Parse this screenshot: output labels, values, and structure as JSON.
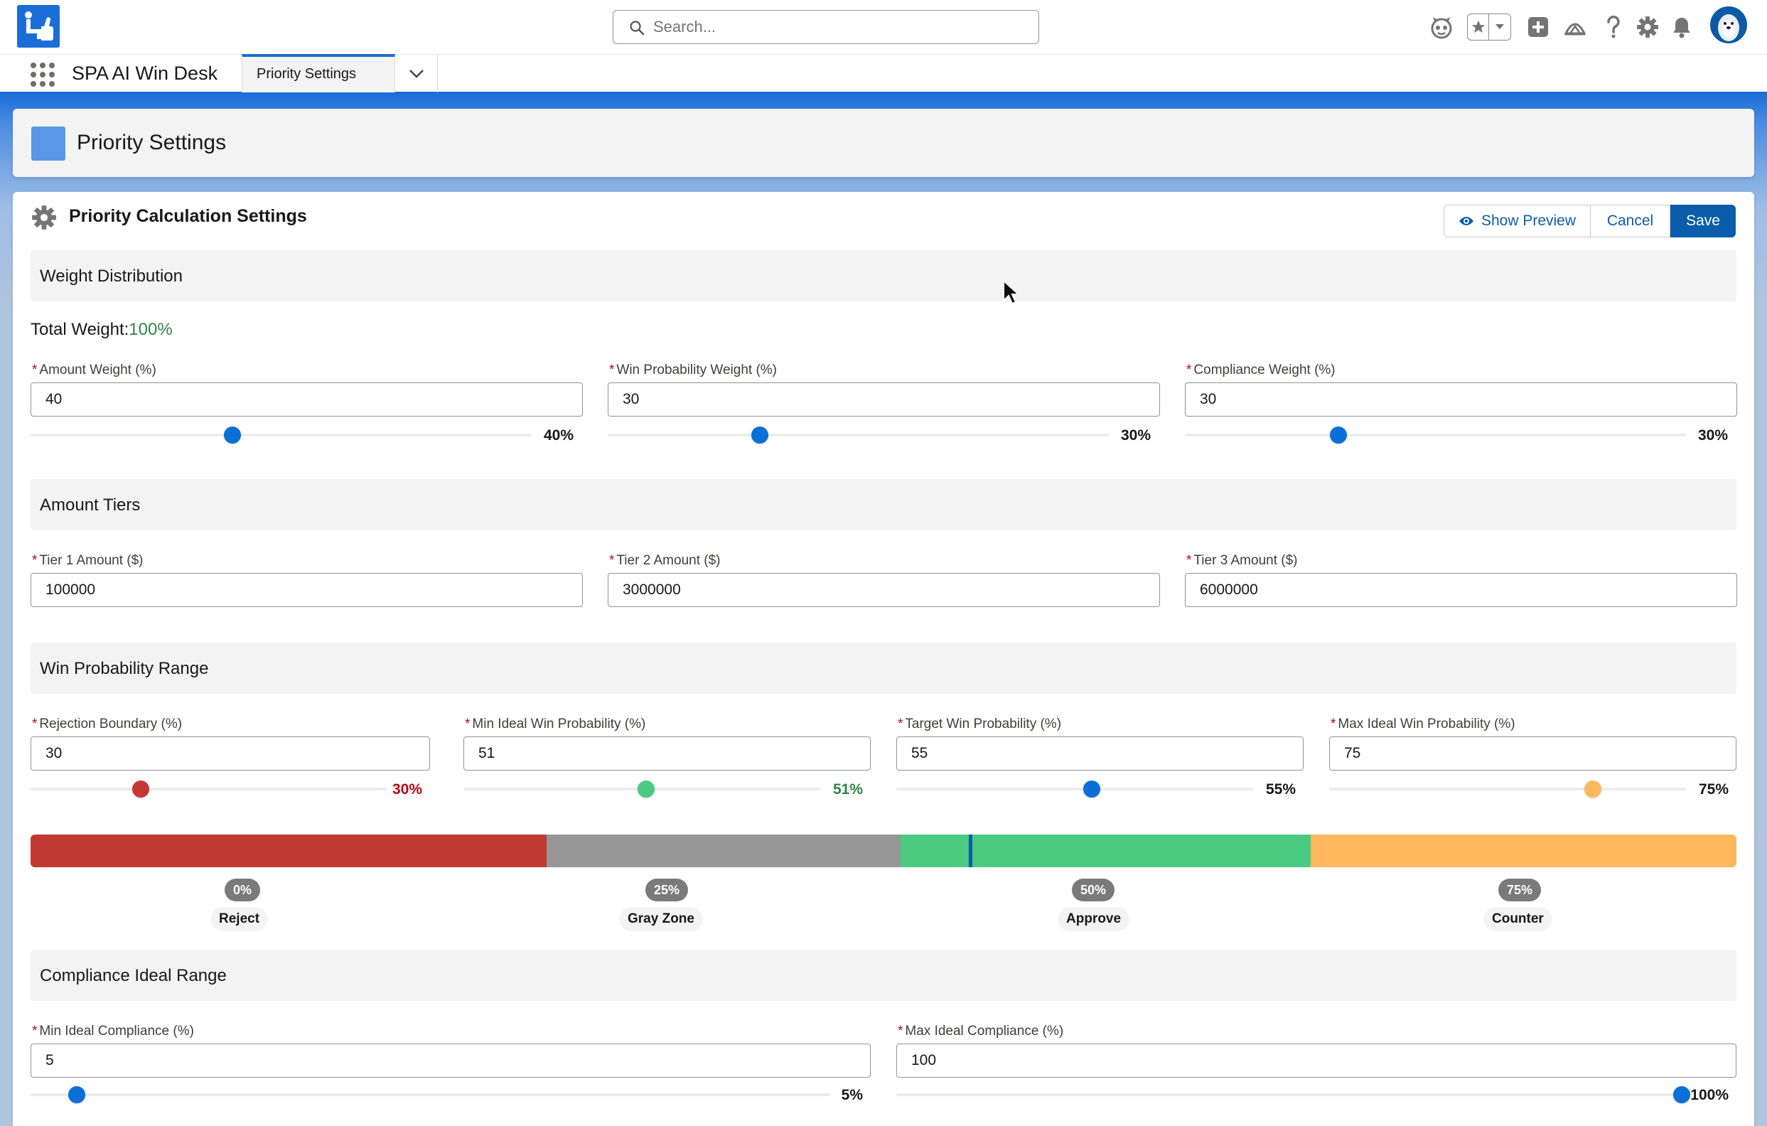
{
  "header": {
    "search_placeholder": "Search...",
    "icons": [
      "astro-icon",
      "favorites-star-icon",
      "add-icon",
      "trailhead-icon",
      "help-icon",
      "setup-gear-icon",
      "notifications-bell-icon",
      "user-avatar"
    ]
  },
  "nav": {
    "app_name": "SPA AI Win Desk",
    "tab_label": "Priority Settings"
  },
  "page": {
    "title": "Priority Settings"
  },
  "card": {
    "title": "Priority Calculation Settings",
    "buttons": {
      "preview": "Show Preview",
      "cancel": "Cancel",
      "save": "Save"
    }
  },
  "weights": {
    "section_title": "Weight Distribution",
    "total_label": "Total Weight:",
    "total_value": "100%",
    "fields": [
      {
        "label": "Amount Weight (%)",
        "value": "40",
        "pct": "40%"
      },
      {
        "label": "Win Probability Weight (%)",
        "value": "30",
        "pct": "30%"
      },
      {
        "label": "Compliance Weight (%)",
        "value": "30",
        "pct": "30%"
      }
    ]
  },
  "tiers": {
    "section_title": "Amount Tiers",
    "fields": [
      {
        "label": "Tier 1 Amount ($)",
        "value": "100000"
      },
      {
        "label": "Tier 2 Amount ($)",
        "value": "3000000"
      },
      {
        "label": "Tier 3 Amount ($)",
        "value": "6000000"
      }
    ]
  },
  "win_prob": {
    "section_title": "Win Probability Range",
    "fields": [
      {
        "label": "Rejection Boundary (%)",
        "value": "30",
        "pct": "30%"
      },
      {
        "label": "Min Ideal Win Probability (%)",
        "value": "51",
        "pct": "51%"
      },
      {
        "label": "Target Win Probability (%)",
        "value": "55",
        "pct": "55%"
      },
      {
        "label": "Max Ideal Win Probability (%)",
        "value": "75",
        "pct": "75%"
      }
    ],
    "ticks": [
      "0%",
      "25%",
      "50%",
      "75%"
    ],
    "zones": [
      "Reject",
      "Gray Zone",
      "Approve",
      "Counter"
    ],
    "colors": {
      "reject": "#c23934",
      "gray": "#969696",
      "approve": "#4bca81",
      "counter": "#ffb75d",
      "target": "#0b5cab"
    }
  },
  "compliance": {
    "section_title": "Compliance Ideal Range",
    "fields": [
      {
        "label": "Min Ideal Compliance (%)",
        "value": "5",
        "pct": "5%"
      },
      {
        "label": "Max Ideal Compliance (%)",
        "value": "100",
        "pct": "100%"
      }
    ]
  }
}
